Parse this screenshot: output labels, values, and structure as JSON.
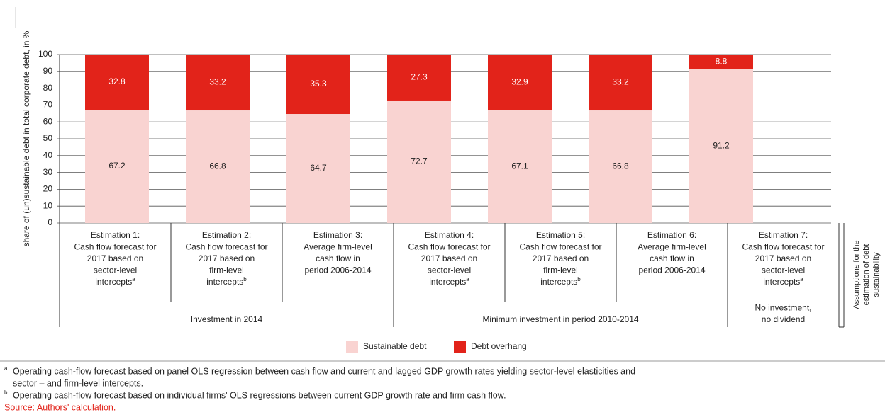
{
  "chart_data": {
    "type": "stacked_bar",
    "y_label": "share of (un)sustainable debt in total corporate debt, in %",
    "side_label": [
      "Assumptions for the",
      "estimation of debt",
      "sustainability"
    ],
    "categories": [
      [
        "Estimation 1:",
        "Cash flow forecast for",
        "2017 based on",
        "sector-level",
        "intercepts"
      ],
      [
        "Estimation 2:",
        "Cash flow forecast for",
        "2017 based on",
        "firm-level",
        "intercepts"
      ],
      [
        "Estimation 3:",
        "Average firm-level",
        "cash flow in",
        "period 2006-2014"
      ],
      [
        "Estimation 4:",
        "Cash flow forecast for",
        "2017 based on",
        "sector-level",
        "intercepts"
      ],
      [
        "Estimation 5:",
        "Cash flow forecast for",
        "2017 based on",
        "firm-level",
        "intercepts"
      ],
      [
        "Estimation 6:",
        "Average firm-level",
        "cash flow in",
        "period 2006-2014"
      ],
      [
        "Estimation 7:",
        "Cash flow forecast for",
        "2017 based on",
        "sector-level",
        "intercepts"
      ]
    ],
    "category_notes": [
      "a",
      "b",
      null,
      "a",
      "b",
      null,
      "a"
    ],
    "groups": [
      {
        "label": [
          "Investment in 2014"
        ],
        "start": 0,
        "end": 2
      },
      {
        "label": [
          "Minimum investment in period 2010-2014"
        ],
        "start": 3,
        "end": 5
      },
      {
        "label": [
          "No investment,",
          "no dividend"
        ],
        "start": 6,
        "end": 6
      }
    ],
    "series": [
      {
        "name": "Sustainable debt",
        "color": "#f9d3d1",
        "values": [
          67.2,
          66.8,
          64.7,
          72.7,
          67.1,
          66.8,
          91.2
        ]
      },
      {
        "name": "Debt overhang",
        "color": "#e2231a",
        "values": [
          32.8,
          33.2,
          35.3,
          27.3,
          32.9,
          33.2,
          8.8
        ]
      }
    ],
    "ylim": [
      0,
      100
    ],
    "yticks": [
      0,
      10,
      20,
      30,
      40,
      50,
      60,
      70,
      80,
      90,
      100
    ],
    "grid": true,
    "footnotes": [
      {
        "mark": "a",
        "lines": [
          "Operating cash-flow forecast based on panel OLS regression between cash flow and current and lagged GDP growth rates yielding sector-level elasticities and",
          "sector – and firm-level intercepts."
        ]
      },
      {
        "mark": "b",
        "lines": [
          "Operating cash-flow forecast based on individual firms' OLS regressions between current GDP growth rate and firm cash flow."
        ]
      }
    ],
    "source": "Source: Authors' calculation."
  }
}
